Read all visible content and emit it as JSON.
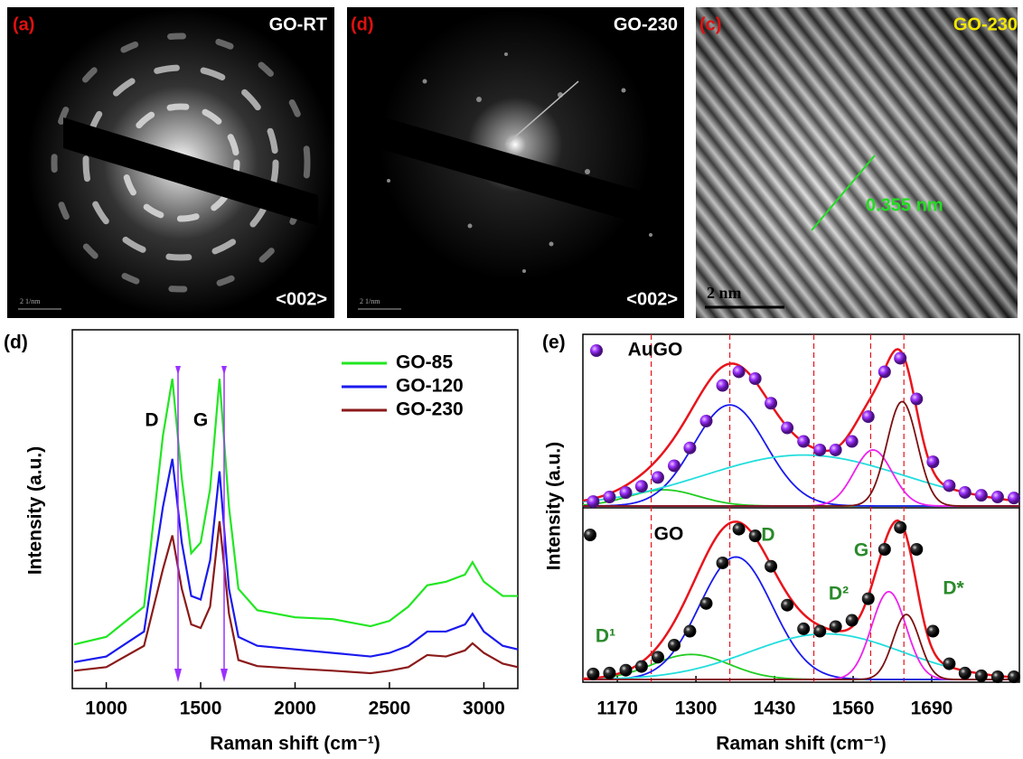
{
  "images": [
    {
      "label": "(a)",
      "title": "GO-RT",
      "scale_bar": "2 1/nm",
      "zone": "<002>"
    },
    {
      "label": "(d)",
      "title": "GO-230",
      "scale_bar": "2 1/nm",
      "zone": "<002>"
    },
    {
      "label": "(c)",
      "title": "GO-230",
      "scale_bar": "2 nm",
      "annotation": "0.355 nm"
    }
  ],
  "chart_data": [
    {
      "type": "line",
      "label": "(d)",
      "xlabel": "Raman shift (cm⁻¹)",
      "ylabel": "Intensity (a.u.)",
      "xlim": [
        820,
        3180
      ],
      "xticks": [
        1000,
        1500,
        2000,
        2500,
        3000
      ],
      "ylim": [
        0,
        100
      ],
      "annotations": [
        "D",
        "G"
      ],
      "x": [
        830,
        1000,
        1200,
        1300,
        1350,
        1400,
        1450,
        1500,
        1550,
        1600,
        1650,
        1700,
        1800,
        2000,
        2200,
        2400,
        2500,
        2600,
        2700,
        2800,
        2900,
        2940,
        3000,
        3100,
        3180
      ],
      "series": [
        {
          "name": "GO-85",
          "color": "#22e622",
          "values": [
            12.4,
            14.5,
            23,
            71,
            87,
            59,
            38,
            41,
            56,
            87,
            51,
            28,
            22,
            20,
            19.5,
            17.5,
            19,
            23,
            29,
            30,
            32,
            35.5,
            30,
            26,
            26
          ]
        },
        {
          "name": "GO-120",
          "color": "#1a1aee",
          "values": [
            7.4,
            9,
            16,
            51,
            64.5,
            41,
            26,
            25,
            36,
            61,
            28,
            14.5,
            12,
            11,
            10,
            9,
            10,
            12,
            16,
            16,
            18,
            21,
            16,
            12,
            11
          ]
        },
        {
          "name": "GO-230",
          "color": "#8b1a1a",
          "values": [
            5,
            6,
            12,
            33.5,
            43,
            28,
            18,
            17,
            23,
            47,
            21,
            8,
            6.3,
            5.6,
            5,
            4.3,
            5,
            6,
            9.4,
            9,
            10.7,
            12.7,
            10,
            7,
            6
          ]
        }
      ]
    },
    {
      "type": "fit",
      "label": "(e)",
      "xlabel": "Raman shift (cm⁻¹)",
      "ylabel": "Intensity (a.u.)",
      "xlim": [
        1113,
        1835
      ],
      "xticks": [
        1170,
        1300,
        1430,
        1560,
        1690
      ],
      "vlines": [
        1226,
        1356,
        1495,
        1589,
        1644
      ],
      "vline_color": "#e8141c",
      "fit_color": "#e8141c",
      "panels": [
        {
          "name": "AuGO",
          "marker_color": "#9b30ff",
          "ylim": [
            0,
            100
          ],
          "annotations": [],
          "x": [
            1130,
            1157,
            1184,
            1210,
            1237,
            1264,
            1290,
            1317,
            1344,
            1371,
            1398,
            1424,
            1451,
            1478,
            1505,
            1531,
            1558,
            1585,
            1612,
            1638,
            1665,
            1692,
            1719,
            1745,
            1772,
            1799,
            1826
          ],
          "values": [
            2.6,
            5.3,
            7.9,
            11.6,
            16.8,
            23.7,
            34.2,
            50,
            71,
            79,
            75,
            60.5,
            46,
            38,
            33,
            33,
            38,
            52.6,
            79,
            87,
            63,
            26,
            12,
            8,
            6.3,
            5.3,
            4.7
          ],
          "components": [
            {
              "color": "#22cc22",
              "center": 1247,
              "height": 9.5,
              "width": 134
            },
            {
              "color": "#1a1aee",
              "center": 1356,
              "height": 59.5,
              "width": 141
            },
            {
              "color": "#22dddd",
              "center": 1478,
              "height": 30,
              "width": 386
            },
            {
              "color": "#ee22ee",
              "center": 1593,
              "height": 33,
              "width": 74
            },
            {
              "color": "#7a1010",
              "center": 1641,
              "height": 61.5,
              "width": 59
            }
          ]
        },
        {
          "name": "GO",
          "marker_color": "#111111",
          "ylim": [
            0,
            100
          ],
          "annotations": [
            "D",
            "G",
            "D²",
            "D*",
            "D¹"
          ],
          "x": [
            1130,
            1157,
            1184,
            1210,
            1237,
            1264,
            1290,
            1317,
            1344,
            1371,
            1398,
            1424,
            1451,
            1478,
            1505,
            1531,
            1558,
            1585,
            1612,
            1638,
            1665,
            1692,
            1719,
            1745,
            1772,
            1799,
            1826
          ],
          "values": [
            3.3,
            3.8,
            5.5,
            7.7,
            13.2,
            20.3,
            28.6,
            45,
            69,
            89,
            85,
            67,
            44,
            30,
            28.6,
            31.3,
            35,
            47.8,
            77,
            90,
            77,
            28.6,
            9.3,
            3.8,
            2.2,
            1.6,
            1.6
          ],
          "components": [
            {
              "color": "#22cc22",
              "center": 1292,
              "height": 14.8,
              "width": 149
            },
            {
              "color": "#1a1aee",
              "center": 1366,
              "height": 72.5,
              "width": 141
            },
            {
              "color": "#22dddd",
              "center": 1515,
              "height": 27,
              "width": 297
            },
            {
              "color": "#ee22ee",
              "center": 1619,
              "height": 52,
              "width": 67
            },
            {
              "color": "#7a1010",
              "center": 1648,
              "height": 38.5,
              "width": 52
            }
          ]
        }
      ]
    }
  ]
}
